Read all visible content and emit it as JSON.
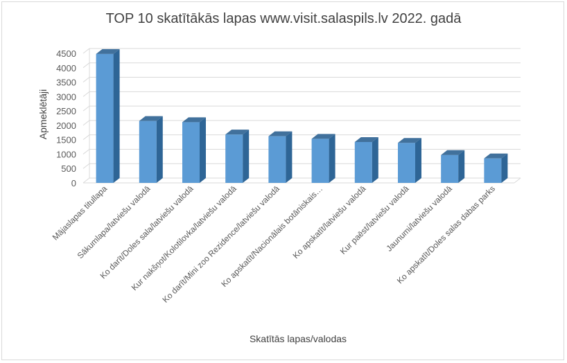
{
  "chart_data": {
    "type": "bar",
    "title": "TOP 10 skatītākās lapas www.visit.salaspils.lv 2022. gadā",
    "xlabel": "Skatītās lapas/valodas",
    "ylabel": "Apmeklētāji",
    "ylim": [
      0,
      4500
    ],
    "yticks": [
      0,
      500,
      1000,
      1500,
      2000,
      2500,
      3000,
      3500,
      4000,
      4500
    ],
    "grid": true,
    "categories": [
      "Mājaslapas titullapa",
      "Sākumlapa/latviešu valodā",
      "Ko darīt/Doles sala/latviešu valodā",
      "Kur nakšņot/Kolotilovka/latviešu valodā",
      "Ko darīt/Mini zoo Rezidence/latviešu valodā",
      "Ko apskatīt/Nacionālais botāniskais…",
      "Ko apskatīt/latviešu valodā",
      "Kur paēst/latviešu valodā",
      "Jaunumi/latviešu valodā",
      "Ko apskatīt/Doles salas dabas parks"
    ],
    "values": [
      4480,
      2150,
      2110,
      1680,
      1620,
      1530,
      1420,
      1390,
      970,
      850
    ],
    "colors": {
      "bar_front": "#5b9bd5",
      "bar_side": "#2e6596",
      "bar_top": "#41719c",
      "grid": "#d9d9d9"
    }
  }
}
